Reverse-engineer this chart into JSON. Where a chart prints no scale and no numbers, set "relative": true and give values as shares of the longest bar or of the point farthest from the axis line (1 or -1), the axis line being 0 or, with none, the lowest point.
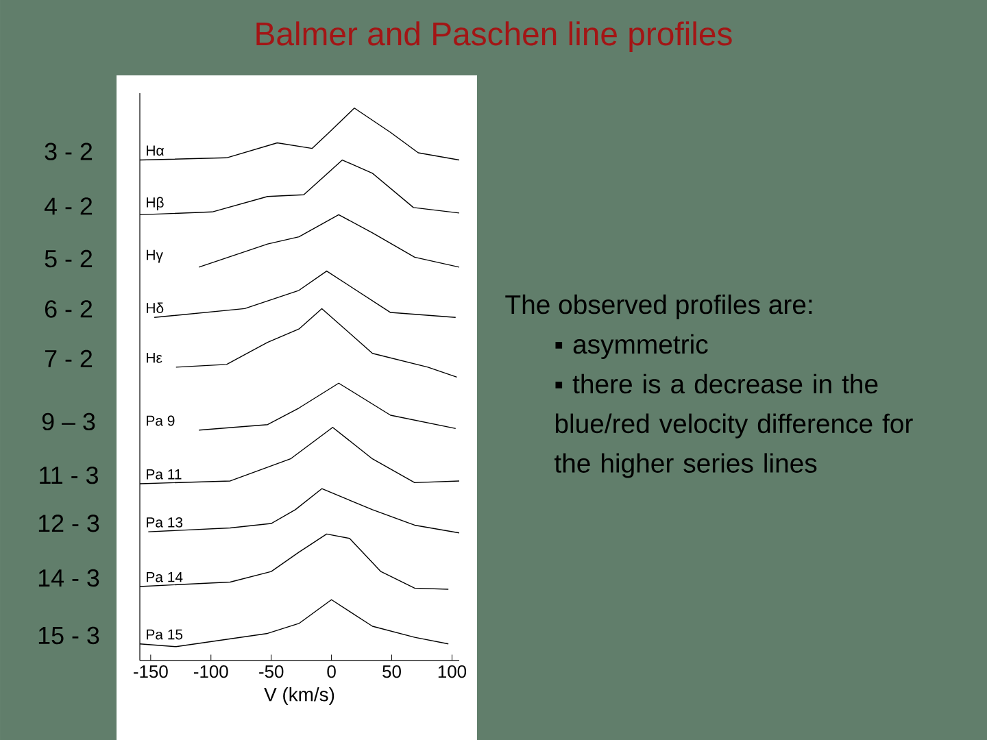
{
  "chart_data": [
    {
      "type": "line",
      "title": "Balmer and Paschen line profiles",
      "xlabel": "V (km/s)",
      "relative": true,
      "tick_labels": "x",
      "xlim": [
        -159,
        106
      ],
      "xticks": [
        -150,
        -100,
        -50,
        0,
        50,
        100
      ],
      "series": [
        {
          "name": "Hα",
          "color": "#000000",
          "x": [
            -159,
            -87,
            -45,
            -16,
            0,
            19,
            49,
            72,
            106
          ],
          "values": [
            0.906,
            0.91,
            0.937,
            0.927,
            0.96,
            1.0,
            0.956,
            0.919,
            0.906
          ]
        },
        {
          "name": "Hβ",
          "color": "#000000",
          "x": [
            -159,
            -99,
            -53,
            -23,
            9,
            34,
            68,
            106
          ],
          "values": [
            0.807,
            0.812,
            0.84,
            0.843,
            0.906,
            0.882,
            0.82,
            0.81
          ]
        },
        {
          "name": "Hγ",
          "color": "#000000",
          "x": [
            -110,
            -53,
            -27,
            6,
            34,
            69,
            106
          ],
          "values": [
            0.712,
            0.754,
            0.767,
            0.807,
            0.774,
            0.73,
            0.712
          ]
        },
        {
          "name": "Hδ",
          "color": "#000000",
          "x": [
            -147,
            -72,
            -27,
            -4,
            49,
            103
          ],
          "values": [
            0.621,
            0.637,
            0.67,
            0.705,
            0.63,
            0.621
          ]
        },
        {
          "name": "Hε",
          "color": "#000000",
          "x": [
            -129,
            -87,
            -53,
            -27,
            -8,
            34,
            80,
            104
          ],
          "values": [
            0.531,
            0.536,
            0.576,
            0.6,
            0.637,
            0.556,
            0.531,
            0.513
          ]
        },
        {
          "name": "Pa 9",
          "color": "#000000",
          "x": [
            -110,
            -53,
            -27,
            6,
            49,
            103
          ],
          "values": [
            0.417,
            0.427,
            0.457,
            0.502,
            0.444,
            0.42
          ]
        },
        {
          "name": "Pa 11",
          "color": "#000000",
          "x": [
            -159,
            -84,
            -34,
            1,
            34,
            69,
            106
          ],
          "values": [
            0.32,
            0.325,
            0.365,
            0.422,
            0.365,
            0.322,
            0.325
          ]
        },
        {
          "name": "Pa 13",
          "color": "#000000",
          "x": [
            -152,
            -84,
            -50,
            -30,
            -8,
            34,
            69,
            106
          ],
          "values": [
            0.233,
            0.24,
            0.248,
            0.273,
            0.311,
            0.273,
            0.245,
            0.231
          ]
        },
        {
          "name": "Pa 14",
          "color": "#000000",
          "x": [
            -159,
            -84,
            -50,
            -27,
            -4,
            15,
            41,
            69,
            97
          ],
          "values": [
            0.134,
            0.142,
            0.161,
            0.196,
            0.229,
            0.221,
            0.161,
            0.131,
            0.129
          ]
        },
        {
          "name": "Pa 15",
          "color": "#000000",
          "x": [
            -159,
            -129,
            -53,
            -27,
            0,
            34,
            69,
            97
          ],
          "values": [
            0.03,
            0.025,
            0.049,
            0.067,
            0.11,
            0.062,
            0.042,
            0.03
          ]
        }
      ],
      "annotations": [
        "3 - 2",
        "4 - 2",
        "5 - 2",
        "6 - 2",
        "7 - 2",
        "9 – 3",
        "11 - 3",
        "12 - 3",
        "14 - 3",
        "15 - 3"
      ]
    },
    {
      "type": "other",
      "title": "The observed profiles are:",
      "annotations": [
        "▪ asymmetric",
        "▪ there is a decrease in the blue/red velocity difference for the higher series lines"
      ]
    }
  ]
}
